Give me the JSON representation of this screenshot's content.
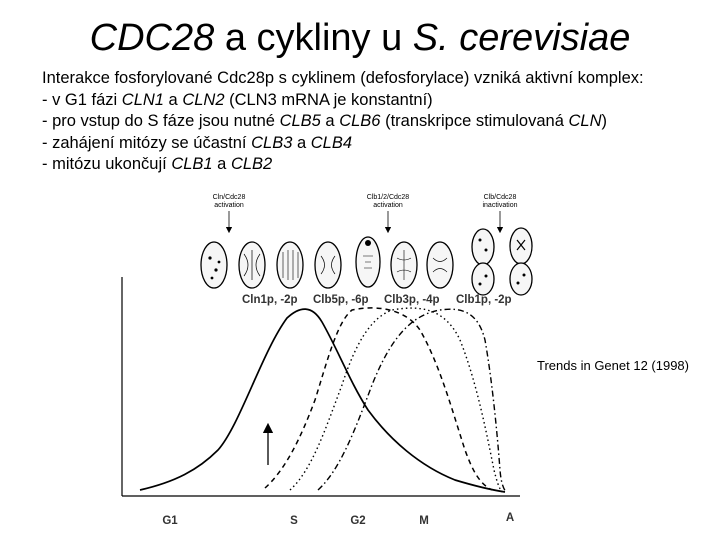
{
  "title": {
    "part1": "CDC28",
    "part2": " a cykliny u ",
    "part3": "S. cerevisiae"
  },
  "body": {
    "line1": "Interakce fosforylované Cdc28p s cyklinem (defosforylace) vzniká aktivní komplex:",
    "line2": {
      "a": "- v G1 fázi ",
      "b": "CLN1",
      "c": " a ",
      "d": "CLN2",
      "e": " (CLN3 mRNA je konstantní)"
    },
    "line3": {
      "a": "- pro vstup do S fáze jsou nutné ",
      "b": "CLB5",
      "c": " a ",
      "d": "CLB6",
      "e": " (transkripce stimulovaná ",
      "f": "CLN",
      "g": ")"
    },
    "line4": {
      "a": "- zahájení mitózy se účastní ",
      "b": "CLB3",
      "c": " a ",
      "d": "CLB4"
    },
    "line5": {
      "a": "- mitózu ukončují ",
      "b": "CLB1",
      "c": " a ",
      "d": "CLB2"
    }
  },
  "figure": {
    "citation": "Trends in Genet 12 (1998)",
    "callouts": [
      {
        "line1": "Cln/Cdc28",
        "line2": "activation"
      },
      {
        "line1": "Clb1/2/Cdc28",
        "line2": "activation"
      },
      {
        "line1": "Clb/Cdc28",
        "line2": "inactivation"
      }
    ],
    "curve_labels": [
      "Cln1p, -2p",
      "Clb5p, -6p",
      "Clb3p, -4p",
      "Clb1p, -2p"
    ],
    "phases": [
      "G1",
      "S",
      "G2",
      "M",
      "A"
    ]
  }
}
